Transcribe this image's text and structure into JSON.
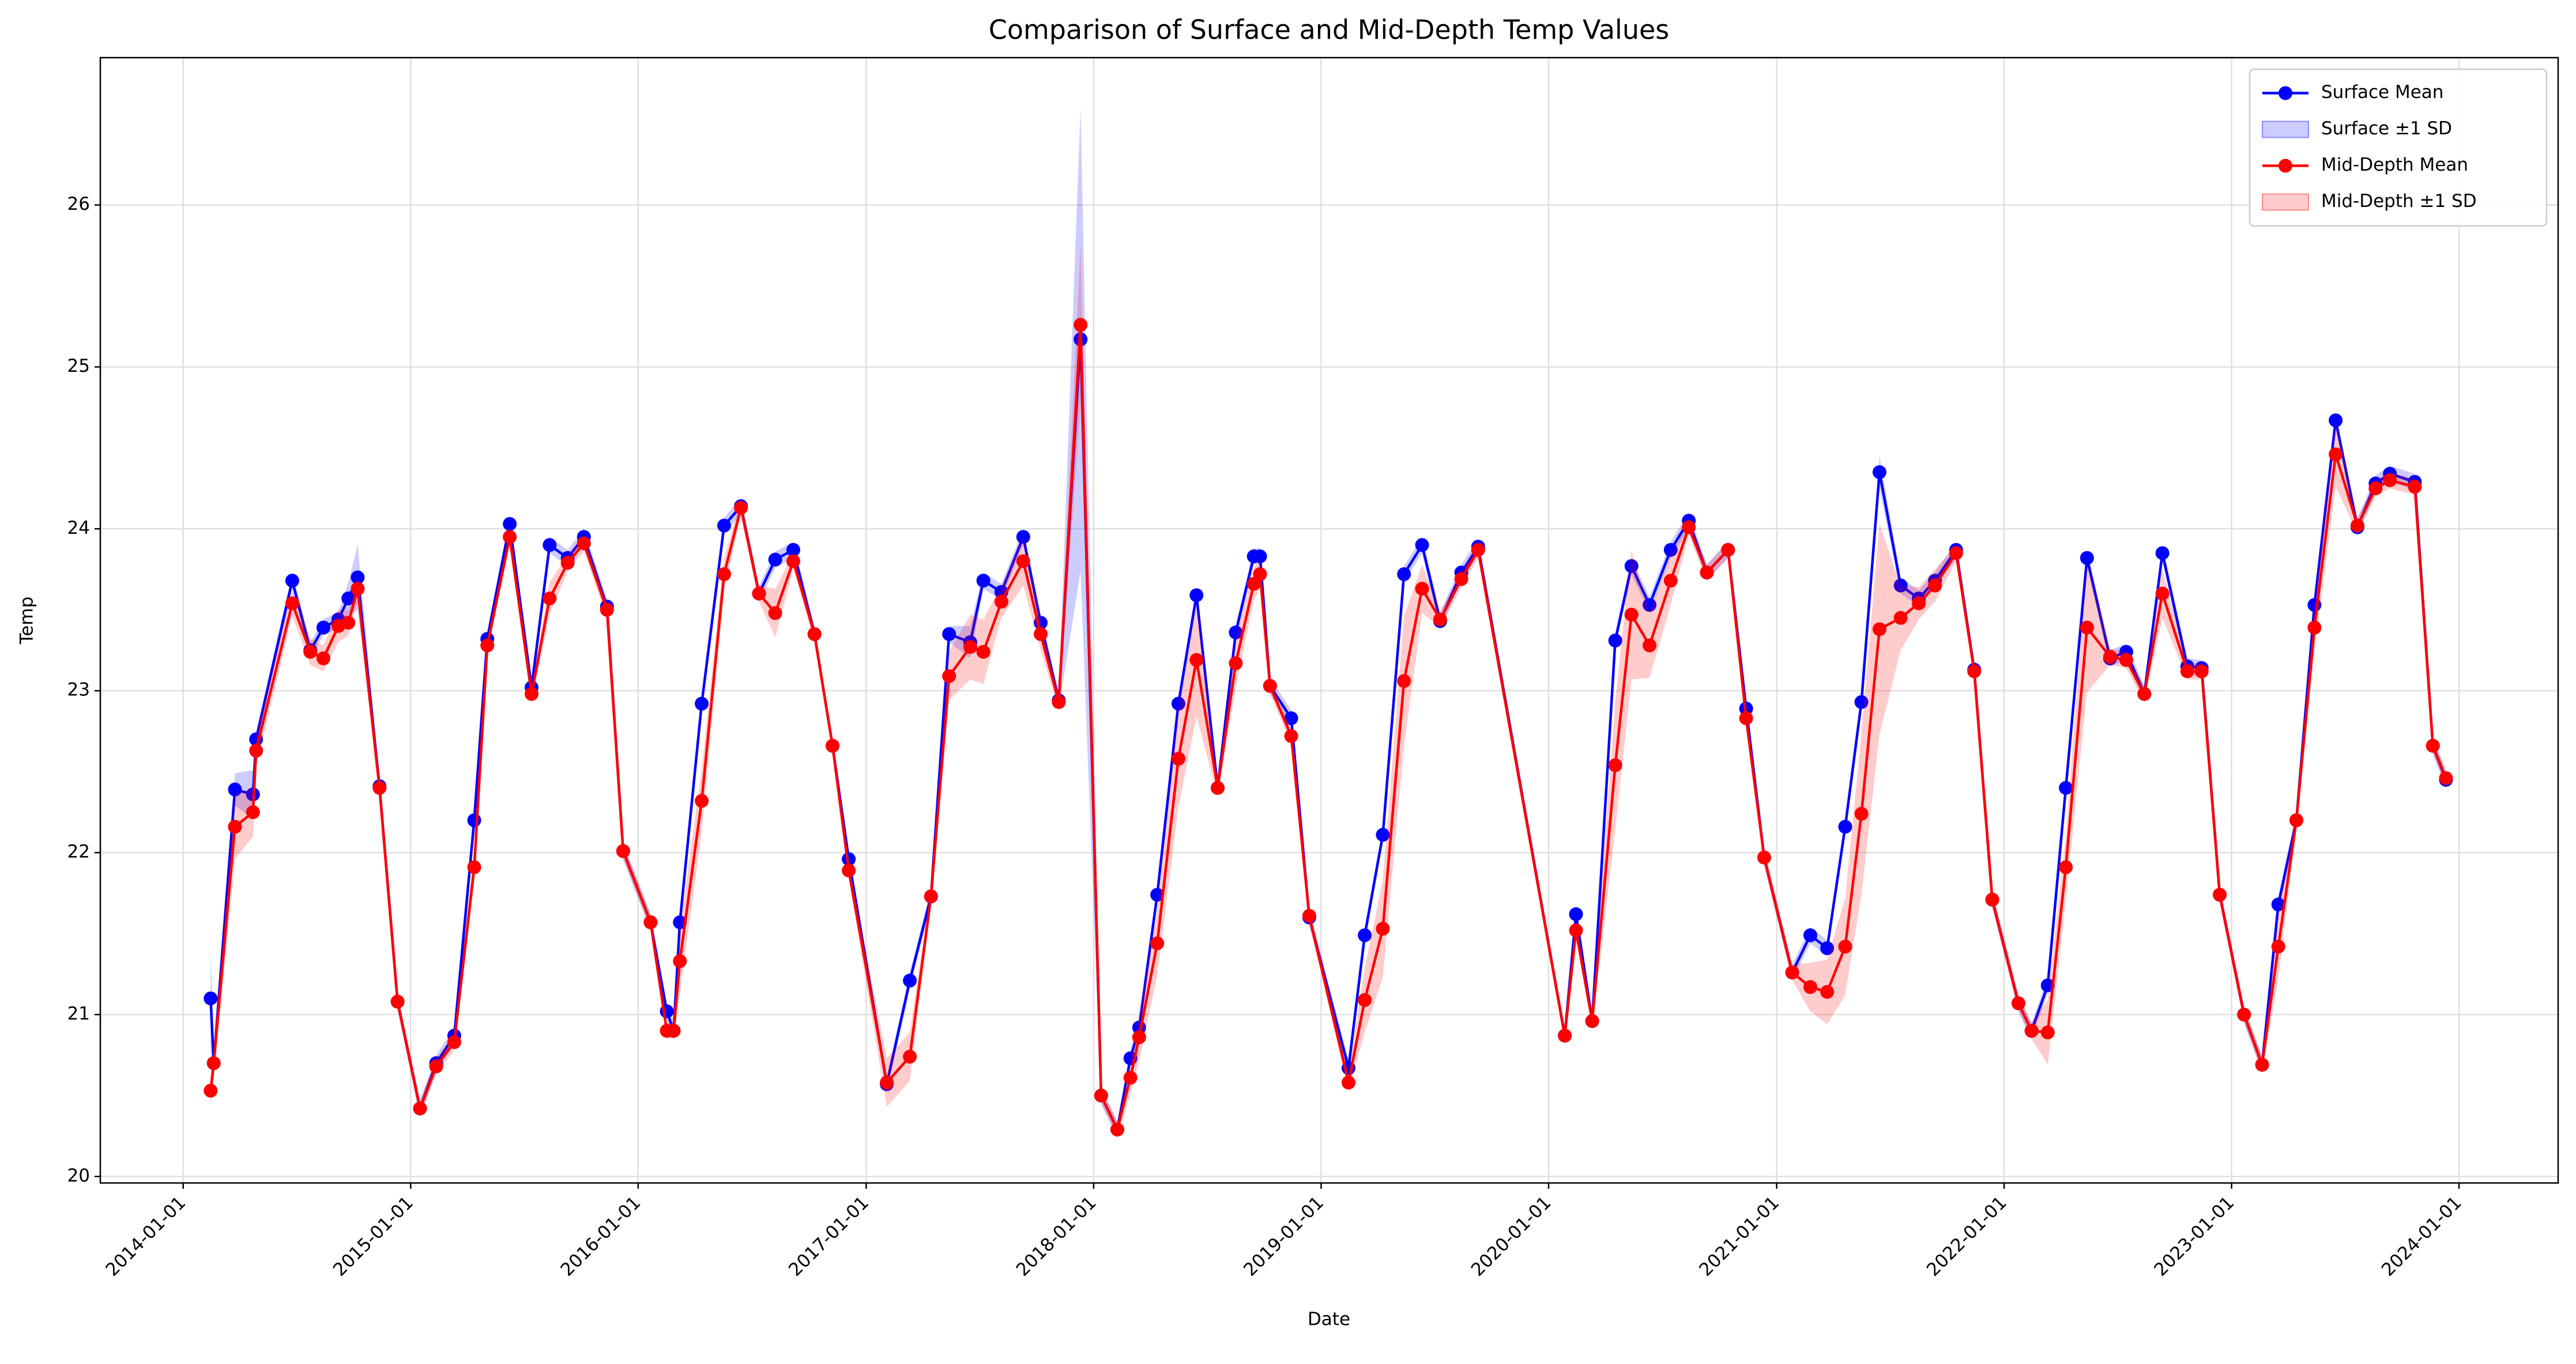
{
  "chart_data": {
    "type": "line",
    "title": "Comparison of Surface and Mid-Depth Temp Values",
    "x_label": "Date",
    "y_label": "Temp",
    "x": [
      "2014-02-14",
      "2014-02-19",
      "2014-03-25",
      "2014-04-23",
      "2014-04-28",
      "2014-06-25",
      "2014-07-24",
      "2014-08-14",
      "2014-09-07",
      "2014-09-23",
      "2014-10-08",
      "2014-11-12",
      "2014-12-11",
      "2015-01-16",
      "2015-02-11",
      "2015-03-12",
      "2015-04-13",
      "2015-05-04",
      "2015-06-09",
      "2015-07-14",
      "2015-08-12",
      "2015-09-10",
      "2015-10-06",
      "2015-11-12",
      "2015-12-08",
      "2016-01-21",
      "2016-02-16",
      "2016-02-27",
      "2016-03-08",
      "2016-04-12",
      "2016-05-18",
      "2016-06-14",
      "2016-07-13",
      "2016-08-08",
      "2016-09-06",
      "2016-10-10",
      "2016-11-08",
      "2016-12-04",
      "2017-02-03",
      "2017-03-12",
      "2017-04-15",
      "2017-05-14",
      "2017-06-17",
      "2017-07-08",
      "2017-08-06",
      "2017-09-10",
      "2017-10-08",
      "2017-11-06",
      "2017-12-11",
      "2018-01-13",
      "2018-02-08",
      "2018-03-01",
      "2018-03-15",
      "2018-04-13",
      "2018-05-17",
      "2018-06-15",
      "2018-07-19",
      "2018-08-17",
      "2018-09-15",
      "2018-09-25",
      "2018-10-11",
      "2018-11-14",
      "2018-12-13",
      "2019-02-14",
      "2019-03-12",
      "2019-04-10",
      "2019-05-14",
      "2019-06-12",
      "2019-07-11",
      "2019-08-14",
      "2019-09-10",
      "2020-01-27",
      "2020-02-14",
      "2020-03-11",
      "2020-04-17",
      "2020-05-13",
      "2020-06-11",
      "2020-07-15",
      "2020-08-13",
      "2020-09-11",
      "2020-10-15",
      "2020-11-13",
      "2020-12-12",
      "2021-01-26",
      "2021-02-24",
      "2021-03-23",
      "2021-04-21",
      "2021-05-17",
      "2021-06-15",
      "2021-07-19",
      "2021-08-17",
      "2021-09-12",
      "2021-10-16",
      "2021-11-14",
      "2021-12-13",
      "2022-01-24",
      "2022-02-14",
      "2022-03-12",
      "2022-04-10",
      "2022-05-14",
      "2022-06-20",
      "2022-07-16",
      "2022-08-14",
      "2022-09-12",
      "2022-10-22",
      "2022-11-14",
      "2022-12-13",
      "2023-01-21",
      "2023-02-19",
      "2023-03-17",
      "2023-04-15",
      "2023-05-14",
      "2023-06-17",
      "2023-07-22",
      "2023-08-20",
      "2023-09-12",
      "2023-10-22",
      "2023-11-20",
      "2023-12-11"
    ],
    "series": [
      {
        "name": "Surface Mean",
        "color": "#0000ff",
        "values": [
          21.1,
          20.7,
          22.39,
          22.36,
          22.7,
          23.68,
          23.25,
          23.39,
          23.44,
          23.57,
          23.7,
          22.41,
          21.08,
          20.42,
          20.7,
          20.87,
          22.2,
          23.32,
          24.03,
          23.02,
          23.9,
          23.82,
          23.95,
          23.52,
          22.01,
          21.57,
          21.02,
          20.9,
          21.57,
          22.92,
          24.02,
          24.14,
          23.6,
          23.81,
          23.87,
          23.35,
          22.66,
          21.96,
          20.57,
          21.21,
          21.73,
          23.35,
          23.3,
          23.68,
          23.61,
          23.95,
          23.42,
          22.94,
          25.17,
          20.5,
          20.29,
          20.73,
          20.92,
          21.74,
          22.92,
          23.59,
          22.4,
          23.36,
          23.83,
          23.83,
          23.03,
          22.83,
          21.6,
          20.67,
          21.49,
          22.11,
          23.72,
          23.9,
          23.43,
          23.73,
          23.89,
          20.87,
          21.62,
          20.96,
          23.31,
          23.77,
          23.53,
          23.87,
          24.05,
          23.73,
          23.87,
          22.89,
          21.97,
          21.26,
          21.49,
          21.41,
          22.16,
          22.93,
          24.35,
          23.65,
          23.57,
          23.68,
          23.87,
          23.13,
          21.71,
          21.07,
          20.9,
          21.18,
          22.4,
          23.82,
          23.2,
          23.24,
          22.98,
          23.85,
          23.15,
          23.14,
          21.74,
          21.0,
          20.69,
          21.68,
          22.2,
          23.53,
          24.67,
          24.01,
          24.28,
          24.34,
          24.29,
          22.66,
          22.45
        ],
        "band": {
          "name": "Surface ±1 SD",
          "color": "#0000ff",
          "values": [
            0.3,
            0.1,
            0.1,
            0.15,
            0.05,
            0.05,
            0.05,
            0.05,
            0.05,
            0.1,
            0.2,
            0.05,
            0.05,
            0.05,
            0.05,
            0.05,
            0.05,
            0.05,
            0.05,
            0.05,
            0.05,
            0.05,
            0.05,
            0.05,
            0.05,
            0.05,
            0.05,
            0.05,
            0.05,
            0.05,
            0.05,
            0.05,
            0.05,
            0.05,
            0.05,
            0.05,
            0.05,
            0.05,
            0.05,
            0.05,
            0.05,
            0.05,
            0.1,
            0.05,
            0.05,
            0.05,
            0.05,
            0.05,
            1.43,
            0.05,
            0.05,
            0.05,
            0.05,
            0.05,
            0.05,
            0.05,
            0.05,
            0.05,
            0.05,
            0.05,
            0.05,
            0.05,
            0.05,
            0.05,
            0.05,
            0.05,
            0.05,
            0.05,
            0.05,
            0.05,
            0.05,
            0.05,
            0.05,
            0.05,
            0.05,
            0.05,
            0.05,
            0.05,
            0.05,
            0.05,
            0.05,
            0.05,
            0.05,
            0.05,
            0.05,
            0.05,
            0.05,
            0.05,
            0.1,
            0.05,
            0.05,
            0.05,
            0.05,
            0.05,
            0.05,
            0.05,
            0.05,
            0.05,
            0.05,
            0.05,
            0.05,
            0.05,
            0.05,
            0.05,
            0.05,
            0.05,
            0.05,
            0.05,
            0.05,
            0.05,
            0.05,
            0.05,
            0.05,
            0.05,
            0.05,
            0.05,
            0.05,
            0.05,
            0.05
          ]
        }
      },
      {
        "name": "Mid-Depth Mean",
        "color": "#ff0000",
        "values": [
          20.53,
          20.7,
          22.16,
          22.25,
          22.63,
          23.54,
          23.24,
          23.2,
          23.4,
          23.42,
          23.63,
          22.4,
          21.08,
          20.42,
          20.68,
          20.83,
          21.91,
          23.28,
          23.95,
          22.98,
          23.57,
          23.79,
          23.91,
          23.5,
          22.01,
          21.57,
          20.9,
          20.9,
          21.33,
          22.32,
          23.72,
          24.13,
          23.6,
          23.48,
          23.8,
          23.35,
          22.66,
          21.89,
          20.58,
          20.74,
          21.73,
          23.09,
          23.27,
          23.24,
          23.55,
          23.8,
          23.35,
          22.93,
          25.26,
          20.5,
          20.29,
          20.61,
          20.86,
          21.44,
          22.58,
          23.19,
          22.4,
          23.17,
          23.66,
          23.72,
          23.03,
          22.72,
          21.61,
          20.58,
          21.09,
          21.53,
          23.06,
          23.63,
          23.44,
          23.69,
          23.87,
          20.87,
          21.52,
          20.96,
          22.54,
          23.47,
          23.28,
          23.68,
          24.01,
          23.73,
          23.87,
          22.83,
          21.97,
          21.26,
          21.17,
          21.14,
          21.42,
          22.24,
          23.38,
          23.45,
          23.54,
          23.65,
          23.85,
          23.12,
          21.71,
          21.07,
          20.9,
          20.89,
          21.91,
          23.39,
          23.21,
          23.19,
          22.98,
          23.6,
          23.12,
          23.12,
          21.74,
          21.0,
          20.69,
          21.42,
          22.2,
          23.39,
          24.46,
          24.02,
          24.25,
          24.3,
          24.26,
          22.66,
          22.46
        ],
        "band": {
          "name": "Mid-Depth ±1 SD",
          "color": "#ff0000",
          "values": [
            0.1,
            0.1,
            0.2,
            0.15,
            0.1,
            0.08,
            0.08,
            0.08,
            0.1,
            0.08,
            0.08,
            0.05,
            0.05,
            0.05,
            0.05,
            0.05,
            0.1,
            0.05,
            0.05,
            0.05,
            0.1,
            0.05,
            0.05,
            0.05,
            0.05,
            0.05,
            0.05,
            0.05,
            0.2,
            0.2,
            0.1,
            0.05,
            0.05,
            0.15,
            0.05,
            0.05,
            0.05,
            0.05,
            0.15,
            0.15,
            0.05,
            0.15,
            0.2,
            0.2,
            0.1,
            0.15,
            0.1,
            0.05,
            0.5,
            0.05,
            0.05,
            0.1,
            0.15,
            0.2,
            0.3,
            0.35,
            0.05,
            0.15,
            0.1,
            0.08,
            0.05,
            0.05,
            0.05,
            0.05,
            0.2,
            0.3,
            0.4,
            0.15,
            0.05,
            0.05,
            0.05,
            0.05,
            0.05,
            0.05,
            0.4,
            0.4,
            0.2,
            0.15,
            0.05,
            0.05,
            0.05,
            0.05,
            0.05,
            0.05,
            0.15,
            0.2,
            0.3,
            0.5,
            0.65,
            0.2,
            0.1,
            0.1,
            0.05,
            0.05,
            0.05,
            0.05,
            0.05,
            0.2,
            0.2,
            0.4,
            0.05,
            0.05,
            0.05,
            0.15,
            0.05,
            0.05,
            0.05,
            0.05,
            0.05,
            0.2,
            0.05,
            0.15,
            0.2,
            0.05,
            0.05,
            0.05,
            0.05,
            0.05,
            0.05
          ]
        }
      }
    ],
    "xlim": [
      "2013-08-21",
      "2024-06-08"
    ],
    "xticks": [
      "2014-01-01",
      "2015-01-01",
      "2016-01-01",
      "2017-01-01",
      "2018-01-01",
      "2019-01-01",
      "2020-01-01",
      "2021-01-01",
      "2022-01-01",
      "2023-01-01",
      "2024-01-01"
    ],
    "ylim": [
      19.96,
      26.91
    ],
    "yticks": [
      20,
      21,
      22,
      23,
      24,
      25,
      26
    ],
    "grid": true,
    "legend": "upper right"
  }
}
